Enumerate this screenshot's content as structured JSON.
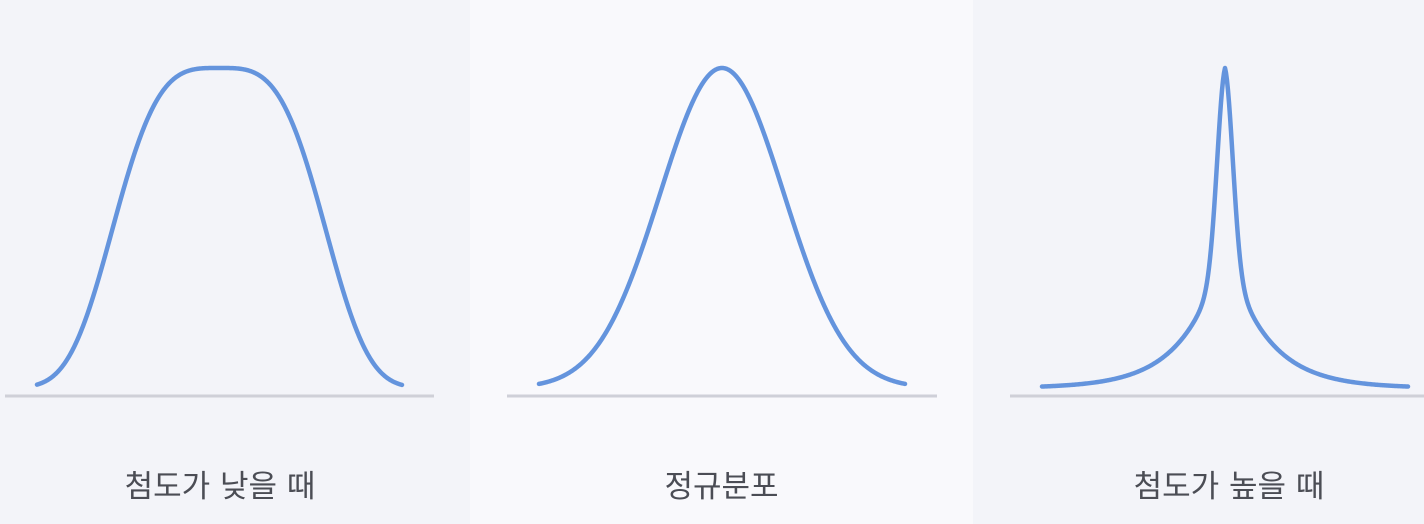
{
  "panels": [
    {
      "label": "첨도가 낮을 때",
      "kind": "platykurtic"
    },
    {
      "label": "정규분포",
      "kind": "normal"
    },
    {
      "label": "첨도가 높을 때",
      "kind": "leptokurtic"
    }
  ],
  "colors": {
    "curve": "#6494dd",
    "baseline": "#cfd0d8",
    "text": "#4b4d55"
  }
}
